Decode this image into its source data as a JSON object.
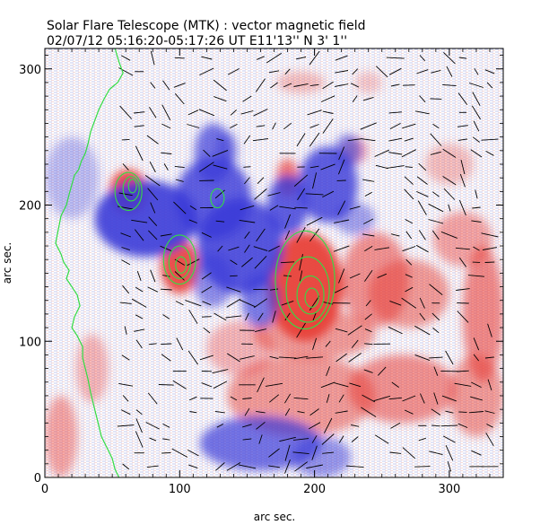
{
  "chart_data": {
    "type": "heatmap",
    "title": "Solar Flare Telescope (MTK) : vector magnetic field",
    "subtitle": "02/07/12   05:16:20-05:17:26 UT    E11'13''  N 3' 1''",
    "xlabel": "arc sec.",
    "ylabel": "arc sec.",
    "xlim": [
      0,
      340
    ],
    "ylim": [
      0,
      315
    ],
    "x_ticks": [
      0,
      100,
      200,
      300
    ],
    "y_ticks": [
      0,
      100,
      200,
      300
    ],
    "colormap": {
      "positive": "#e8403a",
      "negative": "#3a3ad8",
      "zero": "#ffffff"
    },
    "contour_color": "#33dd44",
    "vector_color": "#000000",
    "blobs": [
      {
        "x": 62,
        "y": 210,
        "rx": 14,
        "ry": 16,
        "v": 0.95
      },
      {
        "x": 100,
        "y": 155,
        "rx": 14,
        "ry": 20,
        "v": 0.9
      },
      {
        "x": 193,
        "y": 140,
        "rx": 28,
        "ry": 40,
        "v": 1.0
      },
      {
        "x": 180,
        "y": 220,
        "rx": 8,
        "ry": 14,
        "v": 0.7
      },
      {
        "x": 230,
        "y": 240,
        "rx": 10,
        "ry": 10,
        "v": 0.4
      },
      {
        "x": 245,
        "y": 145,
        "rx": 25,
        "ry": 35,
        "v": 0.55
      },
      {
        "x": 270,
        "y": 135,
        "rx": 30,
        "ry": 25,
        "v": 0.5
      },
      {
        "x": 325,
        "y": 120,
        "rx": 15,
        "ry": 50,
        "v": 0.6
      },
      {
        "x": 310,
        "y": 175,
        "rx": 22,
        "ry": 20,
        "v": 0.45
      },
      {
        "x": 265,
        "y": 65,
        "rx": 40,
        "ry": 25,
        "v": 0.55
      },
      {
        "x": 320,
        "y": 60,
        "rx": 20,
        "ry": 30,
        "v": 0.5
      },
      {
        "x": 190,
        "y": 60,
        "rx": 55,
        "ry": 30,
        "v": 0.5
      },
      {
        "x": 145,
        "y": 95,
        "rx": 25,
        "ry": 20,
        "v": 0.35
      },
      {
        "x": 200,
        "y": 105,
        "rx": 45,
        "ry": 18,
        "v": 0.5
      },
      {
        "x": 35,
        "y": 80,
        "rx": 12,
        "ry": 25,
        "v": 0.35
      },
      {
        "x": 12,
        "y": 30,
        "rx": 12,
        "ry": 30,
        "v": 0.45
      },
      {
        "x": 190,
        "y": 290,
        "rx": 18,
        "ry": 8,
        "v": 0.3
      },
      {
        "x": 240,
        "y": 290,
        "rx": 10,
        "ry": 8,
        "v": 0.25
      },
      {
        "x": 300,
        "y": 230,
        "rx": 18,
        "ry": 15,
        "v": 0.3
      },
      {
        "x": 75,
        "y": 190,
        "rx": 38,
        "ry": 28,
        "v": -0.9
      },
      {
        "x": 125,
        "y": 205,
        "rx": 28,
        "ry": 30,
        "v": -0.8
      },
      {
        "x": 125,
        "y": 238,
        "rx": 14,
        "ry": 22,
        "v": -0.7
      },
      {
        "x": 145,
        "y": 170,
        "rx": 32,
        "ry": 35,
        "v": -0.85
      },
      {
        "x": 180,
        "y": 200,
        "rx": 15,
        "ry": 22,
        "v": -0.8
      },
      {
        "x": 210,
        "y": 215,
        "rx": 22,
        "ry": 28,
        "v": -0.8
      },
      {
        "x": 225,
        "y": 240,
        "rx": 10,
        "ry": 12,
        "v": -0.6
      },
      {
        "x": 160,
        "y": 130,
        "rx": 14,
        "ry": 20,
        "v": -0.65
      },
      {
        "x": 125,
        "y": 145,
        "rx": 15,
        "ry": 20,
        "v": -0.55
      },
      {
        "x": 160,
        "y": 25,
        "rx": 45,
        "ry": 20,
        "v": -0.7
      },
      {
        "x": 205,
        "y": 15,
        "rx": 22,
        "ry": 15,
        "v": -0.5
      },
      {
        "x": 230,
        "y": 190,
        "rx": 15,
        "ry": 12,
        "v": -0.45
      },
      {
        "x": 135,
        "y": 240,
        "rx": 8,
        "ry": 14,
        "v": -0.5
      },
      {
        "x": 20,
        "y": 220,
        "rx": 20,
        "ry": 30,
        "v": -0.3
      }
    ],
    "contours": [
      {
        "x": 62,
        "y": 210,
        "rx": 10,
        "ry": 14
      },
      {
        "x": 64,
        "y": 212,
        "rx": 6,
        "ry": 9
      },
      {
        "x": 65,
        "y": 214,
        "rx": 3,
        "ry": 5
      },
      {
        "x": 100,
        "y": 160,
        "rx": 12,
        "ry": 18
      },
      {
        "x": 100,
        "y": 158,
        "rx": 8,
        "ry": 12
      },
      {
        "x": 101,
        "y": 156,
        "rx": 4,
        "ry": 6
      },
      {
        "x": 193,
        "y": 145,
        "rx": 22,
        "ry": 36
      },
      {
        "x": 195,
        "y": 138,
        "rx": 16,
        "ry": 24
      },
      {
        "x": 197,
        "y": 134,
        "rx": 10,
        "ry": 14
      },
      {
        "x": 198,
        "y": 132,
        "rx": 5,
        "ry": 7
      },
      {
        "x": 128,
        "y": 205,
        "rx": 5,
        "ry": 7
      }
    ],
    "limb": [
      [
        52,
        315
      ],
      [
        55,
        305
      ],
      [
        58,
        297
      ],
      [
        54,
        290
      ],
      [
        48,
        285
      ],
      [
        44,
        278
      ],
      [
        40,
        270
      ],
      [
        37,
        262
      ],
      [
        34,
        254
      ],
      [
        32,
        245
      ],
      [
        30,
        238
      ],
      [
        27,
        232
      ],
      [
        25,
        226
      ],
      [
        22,
        222
      ],
      [
        20,
        215
      ],
      [
        18,
        208
      ],
      [
        16,
        200
      ],
      [
        12,
        192
      ],
      [
        10,
        182
      ],
      [
        8,
        172
      ],
      [
        12,
        164
      ],
      [
        14,
        158
      ],
      [
        18,
        152
      ],
      [
        16,
        146
      ],
      [
        20,
        140
      ],
      [
        24,
        134
      ],
      [
        26,
        126
      ],
      [
        22,
        118
      ],
      [
        20,
        110
      ],
      [
        24,
        104
      ],
      [
        28,
        96
      ],
      [
        28,
        88
      ],
      [
        30,
        80
      ],
      [
        32,
        72
      ],
      [
        34,
        62
      ],
      [
        36,
        54
      ],
      [
        38,
        46
      ],
      [
        40,
        38
      ],
      [
        42,
        30
      ],
      [
        46,
        22
      ],
      [
        50,
        14
      ],
      [
        52,
        6
      ],
      [
        55,
        0
      ]
    ]
  }
}
